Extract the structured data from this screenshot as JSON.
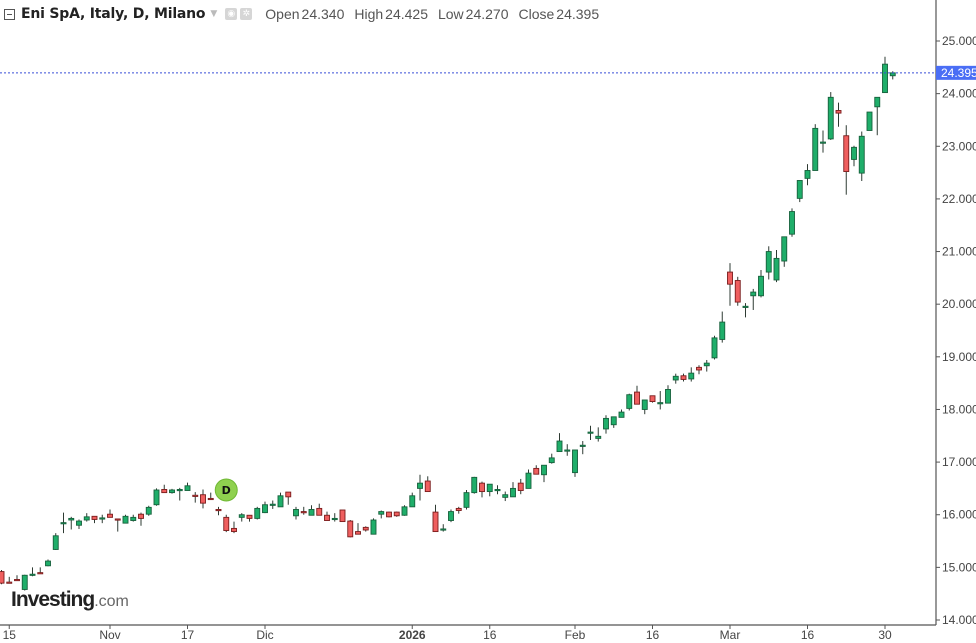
{
  "header": {
    "title": "Eni SpA, Italy, D, Milano",
    "open_label": "Open",
    "open": "24.340",
    "high_label": "High",
    "high": "24.425",
    "low_label": "Low",
    "low": "24.270",
    "close_label": "Close",
    "close": "24.395"
  },
  "logo": {
    "main": "Investing",
    "suffix": ".com"
  },
  "colors": {
    "up_fill": "#1fae6a",
    "up_border": "#17613c",
    "down_fill": "#ef5f5f",
    "down_border": "#7a1c1c",
    "wick": "#2e3b33",
    "price_line": "#3a4fd6",
    "price_label": "#4a6ef5",
    "dividend": "#8fd14f"
  },
  "markers": [
    {
      "type": "dividend",
      "label": "D",
      "date": "2025-11-24"
    }
  ],
  "chart_data": {
    "type": "candlestick",
    "ylim": [
      14,
      25
    ],
    "grid": false,
    "y_ticks": [
      "25.000",
      "24.000",
      "23.000",
      "22.000",
      "21.000",
      "20.000",
      "19.000",
      "18.000",
      "17.000",
      "16.000",
      "15.000",
      "14.000"
    ],
    "x_ticks": [
      {
        "label": "15",
        "date": "2025-10-15",
        "bold": false
      },
      {
        "label": "Nov",
        "date": "2025-11-03",
        "bold": false
      },
      {
        "label": "17",
        "date": "2025-11-17",
        "bold": false
      },
      {
        "label": "Dic",
        "date": "2025-12-01",
        "bold": false
      },
      {
        "label": "2026",
        "date": "2026-01-02",
        "bold": true
      },
      {
        "label": "16",
        "date": "2026-01-16",
        "bold": false
      },
      {
        "label": "Feb",
        "date": "2026-02-02",
        "bold": false
      },
      {
        "label": "16",
        "date": "2026-02-16",
        "bold": false
      },
      {
        "label": "Mar",
        "date": "2026-03-02",
        "bold": false
      },
      {
        "label": "16",
        "date": "2026-03-16",
        "bold": false
      },
      {
        "label": "30",
        "date": "2026-03-30",
        "bold": false
      }
    ],
    "last_price": "24.395",
    "columns": [
      "date",
      "open",
      "high",
      "low",
      "close"
    ],
    "candles": [
      [
        "2025-10-14",
        14.92,
        14.95,
        14.68,
        14.7
      ],
      [
        "2025-10-15",
        14.72,
        14.82,
        14.7,
        14.71
      ],
      [
        "2025-10-16",
        14.77,
        14.85,
        14.75,
        14.76
      ],
      [
        "2025-10-17",
        14.58,
        14.86,
        14.56,
        14.85
      ],
      [
        "2025-10-20",
        14.85,
        15.0,
        14.83,
        14.87
      ],
      [
        "2025-10-21",
        14.9,
        15.0,
        14.88,
        14.89
      ],
      [
        "2025-10-22",
        15.03,
        15.15,
        15.02,
        15.12
      ],
      [
        "2025-10-23",
        15.34,
        15.65,
        15.33,
        15.6
      ],
      [
        "2025-10-24",
        15.83,
        16.04,
        15.65,
        15.85
      ],
      [
        "2025-10-27",
        15.9,
        15.96,
        15.72,
        15.93
      ],
      [
        "2025-10-28",
        15.8,
        15.91,
        15.73,
        15.88
      ],
      [
        "2025-10-29",
        15.9,
        16.03,
        15.87,
        15.96
      ],
      [
        "2025-10-30",
        15.97,
        15.97,
        15.84,
        15.91
      ],
      [
        "2025-10-31",
        15.93,
        16.0,
        15.84,
        15.94
      ],
      [
        "2025-11-03",
        16.01,
        16.1,
        15.95,
        15.95
      ],
      [
        "2025-11-04",
        15.92,
        15.92,
        15.68,
        15.91
      ],
      [
        "2025-11-05",
        15.84,
        16.0,
        15.84,
        15.97
      ],
      [
        "2025-11-06",
        15.89,
        16.0,
        15.87,
        15.95
      ],
      [
        "2025-11-07",
        16.01,
        16.04,
        15.79,
        15.93
      ],
      [
        "2025-11-10",
        16.01,
        16.17,
        15.98,
        16.14
      ],
      [
        "2025-11-11",
        16.19,
        16.5,
        16.17,
        16.47
      ],
      [
        "2025-11-12",
        16.48,
        16.57,
        16.42,
        16.42
      ],
      [
        "2025-11-13",
        16.42,
        16.49,
        16.4,
        16.47
      ],
      [
        "2025-11-14",
        16.48,
        16.51,
        16.27,
        16.48
      ],
      [
        "2025-11-17",
        16.46,
        16.61,
        16.46,
        16.55
      ],
      [
        "2025-11-18",
        16.37,
        16.43,
        16.23,
        16.36
      ],
      [
        "2025-11-19",
        16.38,
        16.48,
        16.12,
        16.22
      ],
      [
        "2025-11-20",
        16.31,
        16.42,
        16.3,
        16.3
      ],
      [
        "2025-11-21",
        16.1,
        16.15,
        15.99,
        16.09
      ],
      [
        "2025-11-24",
        15.95,
        16.0,
        15.67,
        15.7
      ],
      [
        "2025-11-25",
        15.74,
        15.87,
        15.65,
        15.68
      ],
      [
        "2025-11-26",
        15.95,
        16.03,
        15.87,
        16.0
      ],
      [
        "2025-11-27",
        15.99,
        15.99,
        15.87,
        15.93
      ],
      [
        "2025-11-28",
        15.93,
        16.15,
        15.91,
        16.12
      ],
      [
        "2025-12-01",
        16.04,
        16.25,
        16.03,
        16.19
      ],
      [
        "2025-12-02",
        16.19,
        16.27,
        16.11,
        16.2
      ],
      [
        "2025-12-03",
        16.15,
        16.42,
        16.15,
        16.36
      ],
      [
        "2025-12-04",
        16.43,
        16.43,
        16.19,
        16.34
      ],
      [
        "2025-12-05",
        15.98,
        16.15,
        15.91,
        16.1
      ],
      [
        "2025-12-08",
        16.06,
        16.15,
        16.0,
        16.05
      ],
      [
        "2025-12-09",
        15.99,
        16.18,
        15.99,
        16.1
      ],
      [
        "2025-12-10",
        16.12,
        16.21,
        15.99,
        15.99
      ],
      [
        "2025-12-11",
        15.99,
        16.06,
        15.89,
        15.89
      ],
      [
        "2025-12-12",
        15.93,
        16.03,
        15.87,
        15.93
      ],
      [
        "2025-12-15",
        16.09,
        16.09,
        15.87,
        15.87
      ],
      [
        "2025-12-16",
        15.88,
        15.9,
        15.57,
        15.58
      ],
      [
        "2025-12-17",
        15.68,
        15.84,
        15.63,
        15.63
      ],
      [
        "2025-12-18",
        15.76,
        15.78,
        15.68,
        15.71
      ],
      [
        "2025-12-19",
        15.63,
        15.93,
        15.63,
        15.9
      ],
      [
        "2025-12-22",
        16.01,
        16.08,
        15.93,
        16.06
      ],
      [
        "2025-12-23",
        16.05,
        16.06,
        15.95,
        15.96
      ],
      [
        "2025-12-29",
        16.05,
        16.06,
        15.96,
        15.98
      ],
      [
        "2025-12-30",
        15.99,
        16.18,
        15.98,
        16.15
      ],
      [
        "2026-01-02",
        16.15,
        16.42,
        16.15,
        16.36
      ],
      [
        "2026-01-05",
        16.5,
        16.76,
        16.27,
        16.6
      ],
      [
        "2026-01-06",
        16.64,
        16.73,
        16.44,
        16.44
      ],
      [
        "2026-01-07",
        16.05,
        16.19,
        15.68,
        15.68
      ],
      [
        "2026-01-08",
        15.72,
        15.82,
        15.68,
        15.73
      ],
      [
        "2026-01-09",
        15.89,
        16.1,
        15.86,
        16.06
      ],
      [
        "2026-01-12",
        16.12,
        16.15,
        16.02,
        16.08
      ],
      [
        "2026-01-13",
        16.14,
        16.47,
        16.1,
        16.42
      ],
      [
        "2026-01-14",
        16.42,
        16.72,
        16.4,
        16.71
      ],
      [
        "2026-01-15",
        16.6,
        16.63,
        16.33,
        16.44
      ],
      [
        "2026-01-16",
        16.44,
        16.58,
        16.35,
        16.58
      ],
      [
        "2026-01-19",
        16.47,
        16.56,
        16.39,
        16.48
      ],
      [
        "2026-01-20",
        16.33,
        16.44,
        16.26,
        16.38
      ],
      [
        "2026-01-21",
        16.34,
        16.62,
        16.34,
        16.5
      ],
      [
        "2026-01-22",
        16.6,
        16.68,
        16.39,
        16.46
      ],
      [
        "2026-01-23",
        16.5,
        16.86,
        16.5,
        16.79
      ],
      [
        "2026-01-26",
        16.88,
        16.94,
        16.77,
        16.77
      ],
      [
        "2026-01-27",
        16.76,
        16.94,
        16.62,
        16.94
      ],
      [
        "2026-01-28",
        16.99,
        17.16,
        16.97,
        17.08
      ],
      [
        "2026-01-29",
        17.2,
        17.55,
        17.2,
        17.4
      ],
      [
        "2026-01-30",
        17.22,
        17.34,
        17.12,
        17.23
      ],
      [
        "2026-02-02",
        16.8,
        17.23,
        16.72,
        17.23
      ],
      [
        "2026-02-03",
        17.31,
        17.4,
        17.15,
        17.32
      ],
      [
        "2026-02-04",
        17.56,
        17.69,
        17.42,
        17.57
      ],
      [
        "2026-02-05",
        17.45,
        17.66,
        17.39,
        17.49
      ],
      [
        "2026-02-06",
        17.63,
        17.89,
        17.54,
        17.83
      ],
      [
        "2026-02-09",
        17.71,
        17.86,
        17.65,
        17.86
      ],
      [
        "2026-02-10",
        17.85,
        18.0,
        17.85,
        17.95
      ],
      [
        "2026-02-11",
        18.02,
        18.3,
        17.98,
        18.28
      ],
      [
        "2026-02-12",
        18.33,
        18.45,
        18.1,
        18.1
      ],
      [
        "2026-02-13",
        18.0,
        18.18,
        17.91,
        18.18
      ],
      [
        "2026-02-16",
        18.26,
        18.26,
        18.13,
        18.15
      ],
      [
        "2026-02-17",
        18.12,
        18.35,
        18.0,
        18.13
      ],
      [
        "2026-02-18",
        18.12,
        18.46,
        18.12,
        18.38
      ],
      [
        "2026-02-19",
        18.56,
        18.68,
        18.49,
        18.63
      ],
      [
        "2026-02-20",
        18.64,
        18.68,
        18.53,
        18.57
      ],
      [
        "2026-02-23",
        18.58,
        18.8,
        18.53,
        18.69
      ],
      [
        "2026-02-24",
        18.8,
        18.84,
        18.67,
        18.75
      ],
      [
        "2026-02-25",
        18.83,
        18.94,
        18.72,
        18.88
      ],
      [
        "2026-02-26",
        18.98,
        19.4,
        18.95,
        19.36
      ],
      [
        "2026-02-27",
        19.33,
        19.86,
        19.27,
        19.66
      ],
      [
        "2026-03-02",
        20.61,
        20.78,
        19.97,
        20.38
      ],
      [
        "2026-03-03",
        20.45,
        20.52,
        19.97,
        20.04
      ],
      [
        "2026-03-04",
        19.95,
        20.02,
        19.75,
        19.96
      ],
      [
        "2026-03-05",
        20.16,
        20.29,
        19.89,
        20.23
      ],
      [
        "2026-03-06",
        20.16,
        20.65,
        20.13,
        20.53
      ],
      [
        "2026-03-09",
        20.61,
        21.1,
        20.47,
        21.0
      ],
      [
        "2026-03-10",
        20.46,
        21.03,
        20.42,
        20.87
      ],
      [
        "2026-03-11",
        20.82,
        21.28,
        20.71,
        21.28
      ],
      [
        "2026-03-12",
        21.33,
        21.82,
        21.28,
        21.76
      ],
      [
        "2026-03-13",
        22.01,
        22.35,
        21.94,
        22.35
      ],
      [
        "2026-03-16",
        22.39,
        22.66,
        22.26,
        22.54
      ],
      [
        "2026-03-17",
        22.54,
        23.42,
        22.54,
        23.34
      ],
      [
        "2026-03-18",
        23.07,
        23.3,
        22.88,
        23.08
      ],
      [
        "2026-03-19",
        23.14,
        24.03,
        23.12,
        23.93
      ],
      [
        "2026-03-20",
        23.68,
        23.83,
        23.37,
        23.63
      ],
      [
        "2026-03-23",
        23.2,
        23.4,
        22.08,
        22.52
      ],
      [
        "2026-03-24",
        22.75,
        23.01,
        22.62,
        22.98
      ],
      [
        "2026-03-25",
        22.49,
        23.28,
        22.34,
        23.19
      ],
      [
        "2026-03-26",
        23.3,
        23.65,
        23.3,
        23.65
      ],
      [
        "2026-03-27",
        23.75,
        23.93,
        23.21,
        23.93
      ],
      [
        "2026-03-30",
        24.02,
        24.7,
        24.02,
        24.56
      ],
      [
        "2026-03-31",
        24.34,
        24.425,
        24.27,
        24.395
      ]
    ]
  }
}
